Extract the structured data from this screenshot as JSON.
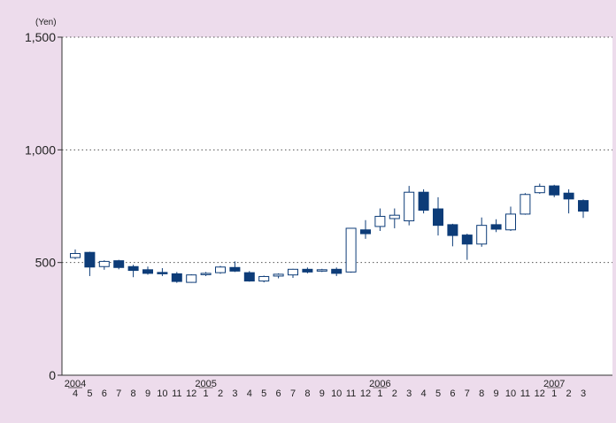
{
  "colors": {
    "background": "#eddcec",
    "plot_background": "#ffffff",
    "axis": "#333333",
    "gridline": "#555555",
    "candle_down": "#0d3c78",
    "candle_up": "#ffffff",
    "candle_outline": "#0d3c78"
  },
  "chart_data": {
    "type": "candlestick",
    "title": "",
    "unit_label": "(Yen)",
    "ylim": [
      0,
      1500
    ],
    "y_ticks": [
      0,
      500,
      1000,
      1500
    ],
    "y_tick_labels": [
      "0",
      "500",
      "1,000",
      "1,500"
    ],
    "grid": "horizontal dotted",
    "x_month_labels": [
      "4",
      "5",
      "6",
      "7",
      "8",
      "9",
      "10",
      "11",
      "12",
      "1",
      "2",
      "3",
      "4",
      "5",
      "6",
      "7",
      "8",
      "9",
      "10",
      "11",
      "12",
      "1",
      "2",
      "3",
      "4",
      "5",
      "6",
      "7",
      "8",
      "9",
      "10",
      "11",
      "12",
      "1",
      "2",
      "3"
    ],
    "x_year_labels": [
      {
        "label": "2004",
        "index": 0
      },
      {
        "label": "2005",
        "index": 9
      },
      {
        "label": "2006",
        "index": 21
      },
      {
        "label": "2007",
        "index": 33
      }
    ],
    "candles": [
      {
        "month": "2004-04",
        "open": 522,
        "close": 540,
        "high": 558,
        "low": 515
      },
      {
        "month": "2004-05",
        "open": 545,
        "close": 480,
        "high": 548,
        "low": 440
      },
      {
        "month": "2004-06",
        "open": 482,
        "close": 505,
        "high": 510,
        "low": 468
      },
      {
        "month": "2004-07",
        "open": 508,
        "close": 478,
        "high": 512,
        "low": 470
      },
      {
        "month": "2004-08",
        "open": 482,
        "close": 465,
        "high": 490,
        "low": 435
      },
      {
        "month": "2004-09",
        "open": 468,
        "close": 452,
        "high": 482,
        "low": 446
      },
      {
        "month": "2004-10",
        "open": 456,
        "close": 450,
        "high": 475,
        "low": 440
      },
      {
        "month": "2004-11",
        "open": 450,
        "close": 416,
        "high": 458,
        "low": 410
      },
      {
        "month": "2004-12",
        "open": 412,
        "close": 445,
        "high": 448,
        "low": 410
      },
      {
        "month": "2005-01",
        "open": 448,
        "close": 452,
        "high": 458,
        "low": 440
      },
      {
        "month": "2005-02",
        "open": 455,
        "close": 480,
        "high": 485,
        "low": 450
      },
      {
        "month": "2005-03",
        "open": 478,
        "close": 462,
        "high": 505,
        "low": 458
      },
      {
        "month": "2005-04",
        "open": 455,
        "close": 418,
        "high": 462,
        "low": 415
      },
      {
        "month": "2005-05",
        "open": 418,
        "close": 438,
        "high": 442,
        "low": 412
      },
      {
        "month": "2005-06",
        "open": 440,
        "close": 448,
        "high": 452,
        "low": 430
      },
      {
        "month": "2005-07",
        "open": 445,
        "close": 470,
        "high": 472,
        "low": 432
      },
      {
        "month": "2005-08",
        "open": 470,
        "close": 458,
        "high": 478,
        "low": 452
      },
      {
        "month": "2005-09",
        "open": 462,
        "close": 468,
        "high": 472,
        "low": 458
      },
      {
        "month": "2005-10",
        "open": 470,
        "close": 452,
        "high": 478,
        "low": 440
      },
      {
        "month": "2005-11",
        "open": 458,
        "close": 652,
        "high": 652,
        "low": 455
      },
      {
        "month": "2005-12",
        "open": 645,
        "close": 628,
        "high": 688,
        "low": 605
      },
      {
        "month": "2006-01",
        "open": 660,
        "close": 705,
        "high": 740,
        "low": 640
      },
      {
        "month": "2006-02",
        "open": 695,
        "close": 710,
        "high": 740,
        "low": 652
      },
      {
        "month": "2006-03",
        "open": 685,
        "close": 812,
        "high": 840,
        "low": 665
      },
      {
        "month": "2006-04",
        "open": 812,
        "close": 732,
        "high": 825,
        "low": 718
      },
      {
        "month": "2006-05",
        "open": 738,
        "close": 665,
        "high": 790,
        "low": 620
      },
      {
        "month": "2006-06",
        "open": 668,
        "close": 620,
        "high": 672,
        "low": 572
      },
      {
        "month": "2006-07",
        "open": 622,
        "close": 582,
        "high": 628,
        "low": 512
      },
      {
        "month": "2006-08",
        "open": 582,
        "close": 665,
        "high": 700,
        "low": 570
      },
      {
        "month": "2006-09",
        "open": 668,
        "close": 648,
        "high": 692,
        "low": 635
      },
      {
        "month": "2006-10",
        "open": 645,
        "close": 715,
        "high": 748,
        "low": 640
      },
      {
        "month": "2006-11",
        "open": 715,
        "close": 802,
        "high": 808,
        "low": 712
      },
      {
        "month": "2006-12",
        "open": 810,
        "close": 838,
        "high": 850,
        "low": 805
      },
      {
        "month": "2007-01",
        "open": 840,
        "close": 800,
        "high": 845,
        "low": 790
      },
      {
        "month": "2007-02",
        "open": 808,
        "close": 782,
        "high": 825,
        "low": 718
      },
      {
        "month": "2007-03",
        "open": 775,
        "close": 728,
        "high": 780,
        "low": 698
      }
    ]
  }
}
